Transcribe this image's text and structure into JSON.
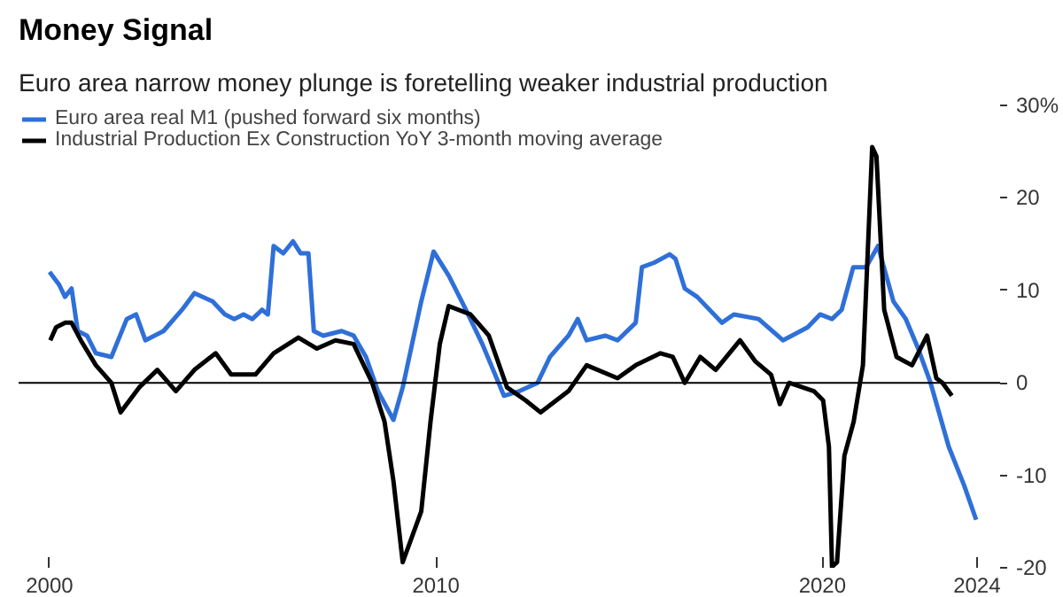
{
  "chart_data": {
    "type": "line",
    "title": "Money Signal",
    "subtitle": "Euro area narrow money plunge is foretelling weaker industrial production",
    "series": [
      {
        "name": "Euro area real M1 (pushed forward six months)",
        "color": "#2f6fd8",
        "x": [
          2000.0,
          2000.25,
          2000.4,
          2000.57,
          2000.73,
          2000.97,
          2001.2,
          2001.6,
          2002.0,
          2002.24,
          2002.48,
          2002.95,
          2003.43,
          2003.75,
          2004.22,
          2004.54,
          2004.78,
          2005.02,
          2005.25,
          2005.5,
          2005.65,
          2005.8,
          2006.05,
          2006.3,
          2006.5,
          2006.7,
          2006.84,
          2007.08,
          2007.56,
          2007.87,
          2008.19,
          2008.5,
          2008.9,
          2009.14,
          2009.62,
          2009.94,
          2010.33,
          2010.73,
          2011.2,
          2011.76,
          2012.16,
          2012.63,
          2012.95,
          2013.43,
          2013.67,
          2013.9,
          2014.38,
          2014.7,
          2015.17,
          2015.33,
          2015.65,
          2016.05,
          2016.2,
          2016.44,
          2016.76,
          2017.4,
          2017.71,
          2018.35,
          2018.98,
          2019.62,
          2019.94,
          2020.25,
          2020.5,
          2020.8,
          2021.13,
          2021.44,
          2021.84,
          2022.16,
          2022.48,
          2022.8,
          2023.27,
          2023.67,
          2023.98
        ],
        "values": [
          12.0,
          10.6,
          9.3,
          10.2,
          5.6,
          5.1,
          3.2,
          2.8,
          6.9,
          7.4,
          4.6,
          5.6,
          7.9,
          9.7,
          8.8,
          7.4,
          6.9,
          7.4,
          6.9,
          7.9,
          7.4,
          14.8,
          14.0,
          15.3,
          14.0,
          14.0,
          5.6,
          5.1,
          5.6,
          5.1,
          2.8,
          -0.9,
          -4.0,
          -0.5,
          8.8,
          14.2,
          11.6,
          8.3,
          4.2,
          -1.4,
          -0.9,
          0.0,
          2.8,
          5.1,
          6.9,
          4.6,
          5.1,
          4.6,
          6.5,
          12.5,
          13.0,
          13.9,
          13.4,
          10.2,
          9.3,
          6.5,
          7.4,
          6.9,
          4.6,
          6.0,
          7.4,
          6.9,
          7.9,
          12.5,
          12.5,
          14.8,
          8.8,
          6.9,
          3.7,
          0.0,
          -6.9,
          -11.1,
          -14.8
        ]
      },
      {
        "name": "Industrial Production Ex Construction YoY 3-month moving average",
        "color": "#000000",
        "x": [
          2000.02,
          2000.17,
          2000.41,
          2000.57,
          2000.81,
          2001.2,
          2001.6,
          2001.84,
          2002.32,
          2002.79,
          2003.27,
          2003.75,
          2004.3,
          2004.7,
          2005.33,
          2005.8,
          2006.44,
          2006.92,
          2007.4,
          2007.87,
          2008.35,
          2008.67,
          2008.9,
          2009.14,
          2009.62,
          2009.86,
          2010.1,
          2010.33,
          2010.89,
          2011.37,
          2011.84,
          2012.32,
          2012.71,
          2013.43,
          2013.9,
          2014.7,
          2015.17,
          2015.81,
          2016.13,
          2016.44,
          2016.84,
          2017.24,
          2017.87,
          2018.27,
          2018.67,
          2018.9,
          2019.14,
          2019.78,
          2020.02,
          2020.17,
          2020.25,
          2020.38,
          2020.57,
          2020.81,
          2021.05,
          2021.29,
          2021.4,
          2021.6,
          2021.92,
          2022.32,
          2022.71,
          2022.95,
          2023.11,
          2023.35
        ],
        "values": [
          4.6,
          6.0,
          6.5,
          6.5,
          4.6,
          1.9,
          0.0,
          -3.2,
          -0.5,
          1.4,
          -0.9,
          1.4,
          3.2,
          0.9,
          0.9,
          3.2,
          4.9,
          3.7,
          4.6,
          4.2,
          0.0,
          -4.2,
          -10.6,
          -19.4,
          -13.9,
          -4.2,
          4.2,
          8.3,
          7.4,
          5.1,
          -0.5,
          -1.9,
          -3.2,
          -0.9,
          1.9,
          0.5,
          1.9,
          3.2,
          2.8,
          0.0,
          2.8,
          1.4,
          4.6,
          2.3,
          0.9,
          -2.3,
          0.0,
          -0.9,
          -1.9,
          -6.9,
          -19.9,
          -19.4,
          -7.9,
          -4.2,
          1.9,
          25.5,
          24.5,
          7.9,
          2.8,
          1.9,
          5.1,
          0.5,
          0.0,
          -1.4
        ]
      }
    ],
    "xlim": [
      1999.2,
      2024.6
    ],
    "xticks": [
      2000,
      2010,
      2020,
      2024
    ],
    "ylim": [
      -20,
      30
    ],
    "yticks": [
      {
        "value": 30,
        "label": "30%"
      },
      20,
      10,
      0,
      -10,
      -20
    ],
    "ref_lines": [
      {
        "axis": "y",
        "value": 0,
        "color": "#000000"
      }
    ],
    "grid": false,
    "legend": "top left",
    "line_style": "solid",
    "marker": "none"
  }
}
